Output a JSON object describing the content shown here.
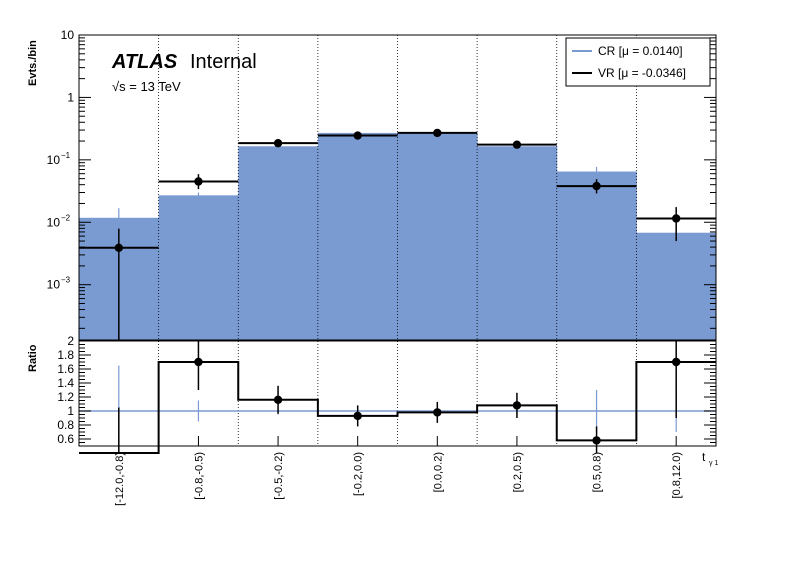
{
  "chart_data": {
    "type": "bar",
    "experiment": "ATLAS",
    "experiment_status": "Internal",
    "energy_label": "√s = 13 TeV",
    "categories": [
      "[-12.0,-0.8)",
      "[-0.8,-0.5)",
      "[-0.5,-0.2)",
      "[-0.2,0.0)",
      "[0.0,0.2)",
      "[0.2,0.5)",
      "[0.5,0.8)",
      "[0.8,12.0)"
    ],
    "xlabel": "t",
    "xlabel_sub": "γ 1",
    "top_panel": {
      "ylabel": "Evts./bin",
      "yscale": "log",
      "ylim": [
        0.00013,
        10
      ],
      "yticks": [
        {
          "value": 10,
          "label": "10"
        },
        {
          "value": 1,
          "label": "1"
        },
        {
          "value": 0.1,
          "label": "10",
          "exp": "−1"
        },
        {
          "value": 0.01,
          "label": "10",
          "exp": "−2"
        },
        {
          "value": 0.001,
          "label": "10",
          "exp": "−3"
        }
      ],
      "series": [
        {
          "name": "CR [μ = 0.0140]",
          "style": "filled-histogram",
          "color": "#7a9ad2",
          "values": [
            0.0118,
            0.027,
            0.165,
            0.27,
            0.27,
            0.165,
            0.065,
            0.0068
          ],
          "errors": [
            0.005,
            0.003,
            0.006,
            0.007,
            0.007,
            0.006,
            0.012,
            0.002
          ]
        },
        {
          "name": "VR [μ = -0.0346]",
          "style": "points-with-errors",
          "color": "#000000",
          "values": [
            0.0039,
            0.045,
            0.185,
            0.245,
            0.27,
            0.175,
            0.038,
            0.0115
          ],
          "errors_up": [
            0.004,
            0.014,
            0.018,
            0.02,
            0.02,
            0.018,
            0.011,
            0.006
          ],
          "errors_down": [
            0.0039,
            0.011,
            0.016,
            0.018,
            0.018,
            0.016,
            0.009,
            0.0065
          ]
        }
      ]
    },
    "ratio_panel": {
      "ylabel": "Ratio",
      "ylim": [
        0.5,
        2.0
      ],
      "yticks": [
        0.6,
        0.8,
        1,
        1.2,
        1.4,
        1.6,
        1.8,
        2
      ],
      "reference": 1,
      "values": [
        0.35,
        1.7,
        1.16,
        0.93,
        0.98,
        1.08,
        0.58,
        1.7
      ],
      "errors": [
        0.7,
        0.4,
        0.2,
        0.15,
        0.15,
        0.18,
        0.2,
        0.8
      ],
      "cr_errors": [
        0.65,
        0.15,
        0.05,
        0.05,
        0.05,
        0.05,
        0.3,
        0.3
      ]
    },
    "grid": "vertical dotted lines at bin edges",
    "legend_position": "top-right"
  }
}
